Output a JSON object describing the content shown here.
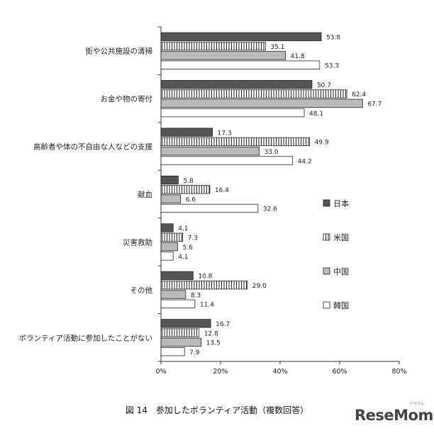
{
  "chart_data": {
    "type": "bar",
    "orientation": "horizontal",
    "categories": [
      "街や公共施設の清掃",
      "お金や物の寄付",
      "高齢者や体の不自由な人などの支援",
      "献血",
      "災害救助",
      "その他",
      "ボランティア活動に参加したことがない"
    ],
    "series": [
      {
        "name": "日本",
        "values": [
          53.8,
          50.7,
          17.3,
          5.8,
          4.1,
          10.8,
          16.7
        ],
        "labels": [
          "53.8",
          "50.7",
          "17.3",
          "5.8",
          "4.1",
          "10.8",
          "16.7"
        ],
        "fill": "#555555"
      },
      {
        "name": "米国",
        "values": [
          35.1,
          62.4,
          49.9,
          16.4,
          7.3,
          29.0,
          12.8
        ],
        "labels": [
          "35.1",
          "62.4",
          "49.9",
          "16.4",
          "7.3",
          "29.0",
          "12.8"
        ],
        "fill": "stripes"
      },
      {
        "name": "中国",
        "values": [
          41.8,
          67.7,
          33.0,
          6.6,
          5.6,
          8.3,
          13.5
        ],
        "labels": [
          "41.8",
          "67.7",
          "33.0",
          "6.6",
          "5.6",
          "8.3",
          "13.5"
        ],
        "fill": "#bbbbbb"
      },
      {
        "name": "韓国",
        "values": [
          53.3,
          48.1,
          44.2,
          32.6,
          4.1,
          11.4,
          7.9
        ],
        "labels": [
          "53.3",
          "48.1",
          "44.2",
          "32.6",
          "4.1",
          "11.4",
          "7.9"
        ],
        "fill": "#ffffff"
      }
    ],
    "xlim": [
      0,
      80
    ],
    "xticks": [
      "0%",
      "20%",
      "40%",
      "60%",
      "80%"
    ],
    "legend_position": "right",
    "title": "図 14　参加したボランティア活動（複数回答）"
  },
  "caption": "図 14　参加したボランティア活動（複数回答）",
  "brand": "ReseMom",
  "brand_sub": "リセマム"
}
